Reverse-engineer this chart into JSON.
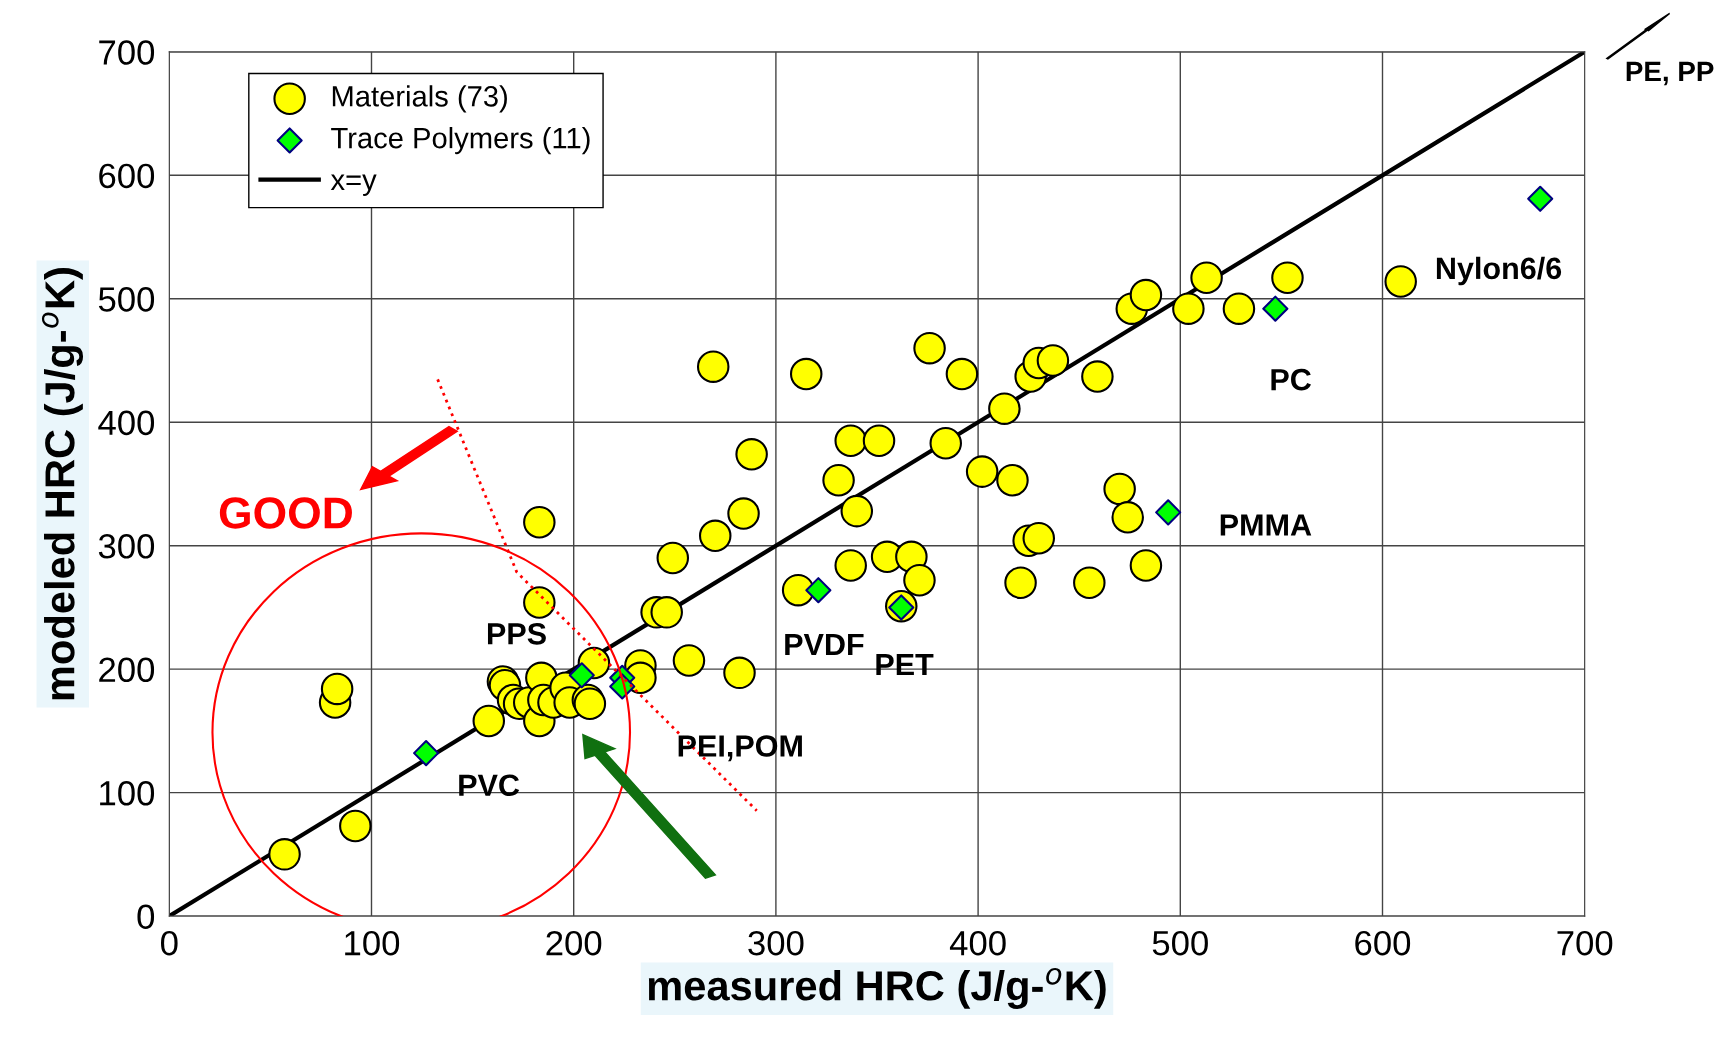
{
  "chart_data": {
    "type": "scatter",
    "xlabel": "measured HRC (J/g-$^{o}$K)",
    "ylabel": "modeled HRC (J/g-$^{o}$K)",
    "xlim": [
      0,
      700
    ],
    "ylim": [
      0,
      700
    ],
    "xticks": [
      0,
      100,
      200,
      300,
      400,
      500,
      600,
      700
    ],
    "yticks": [
      0,
      100,
      200,
      300,
      400,
      500,
      600,
      700
    ],
    "grid": true,
    "legend": "top left",
    "series": [
      {
        "name": "Materials (73)",
        "marker": "circle",
        "color": "#ffff00",
        "x": [
          57,
          92,
          82,
          83,
          158,
          165,
          166,
          170,
          173,
          178,
          183,
          184,
          185,
          190,
          196,
          198,
          207,
          208,
          210,
          183,
          183,
          233,
          233,
          241,
          246,
          249,
          257,
          269,
          270,
          282,
          284,
          288,
          311,
          315,
          331,
          337,
          337,
          340,
          351,
          355,
          362,
          367,
          371,
          376,
          384,
          392,
          402,
          413,
          417,
          421,
          425,
          426,
          430,
          430,
          437,
          455,
          459,
          470,
          474,
          476,
          483,
          483,
          504,
          513,
          529,
          553,
          609
        ],
        "values": [
          50,
          73,
          173,
          184,
          158,
          190,
          187,
          175,
          172,
          173,
          158,
          193,
          175,
          173,
          185,
          173,
          175,
          172,
          205,
          319,
          254,
          203,
          193,
          246,
          246,
          290,
          207,
          445,
          308,
          197,
          326,
          374,
          264,
          439,
          353,
          385,
          284,
          328,
          385,
          291,
          251,
          291,
          272,
          460,
          383,
          439,
          360,
          411,
          353,
          270,
          304,
          437,
          306,
          448,
          450,
          270,
          437,
          346,
          323,
          492,
          503,
          284,
          492,
          517,
          492,
          517,
          514
        ]
      },
      {
        "name": "Trace Polymers (11)",
        "marker": "diamond",
        "color": "#00ff00",
        "x": [
          127,
          204,
          224,
          224,
          321,
          362,
          494,
          547,
          678
        ],
        "values": [
          132,
          195,
          193,
          186,
          264,
          250,
          327,
          492,
          581
        ]
      },
      {
        "name": "x=y",
        "type": "line",
        "marker": "none",
        "line_style": "solid",
        "color": "#000000",
        "x": [
          0,
          700
        ],
        "values": [
          0,
          700
        ]
      }
    ],
    "annotations": [
      {
        "text": "PVC",
        "x": 127,
        "y": 132
      },
      {
        "text": "PPS",
        "x": 204,
        "y": 195
      },
      {
        "text": "PEI,POM",
        "x": 224,
        "y": 193
      },
      {
        "text": "PVDF",
        "x": 321,
        "y": 264
      },
      {
        "text": "PET",
        "x": 362,
        "y": 250
      },
      {
        "text": "PMMA",
        "x": 494,
        "y": 327
      },
      {
        "text": "PC",
        "x": 547,
        "y": 492
      },
      {
        "text": "Nylon6/6",
        "x": 678,
        "y": 581
      },
      "GOOD",
      "PE, PP"
    ]
  }
}
